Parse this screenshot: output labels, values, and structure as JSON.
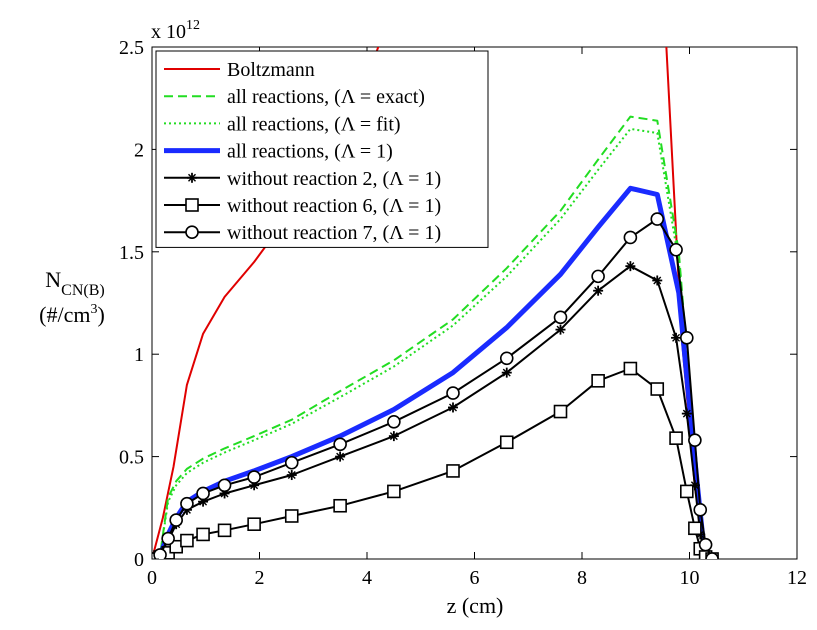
{
  "chart_data": {
    "type": "line",
    "xlabel": "z (cm)",
    "ylabel_main": "N",
    "ylabel_sub": "CN(B)",
    "ylabel_unit_pre": "(#/cm",
    "ylabel_unit_sup": "3",
    "ylabel_unit_post": ")",
    "exponent_prefix": "x 10",
    "exponent_power": "12",
    "xlim": [
      0,
      12
    ],
    "ylim": [
      0,
      2.5
    ],
    "xticks": [
      "0",
      "2",
      "4",
      "6",
      "8",
      "10",
      "12"
    ],
    "yticks": [
      "0",
      "0.5",
      "1",
      "1.5",
      "2",
      "2.5"
    ],
    "grid": false,
    "legend_position": "top-left",
    "series": [
      {
        "name": "Boltzmann",
        "color": "#e00000",
        "style": "solid",
        "marker": "none",
        "x": [
          0.0,
          0.2,
          0.4,
          0.65,
          0.95,
          1.35,
          1.9,
          2.6,
          3.3,
          4.0,
          4.35,
          9.55,
          9.85,
          10.1,
          10.25,
          10.35,
          10.42
        ],
        "y": [
          0.0,
          0.2,
          0.45,
          0.85,
          1.1,
          1.28,
          1.45,
          1.7,
          2.0,
          2.35,
          2.6,
          2.6,
          1.1,
          0.35,
          0.1,
          0.02,
          0.0
        ]
      },
      {
        "name": "all reactions, (Λ = exact)",
        "color": "#22dd22",
        "style": "dashed",
        "marker": "none",
        "x": [
          0.0,
          0.15,
          0.3,
          0.45,
          0.65,
          0.95,
          1.35,
          1.9,
          2.6,
          3.5,
          4.5,
          5.6,
          6.6,
          7.6,
          8.3,
          8.9,
          9.4,
          9.8,
          10.0,
          10.15,
          10.25,
          10.35,
          10.42
        ],
        "y": [
          0.0,
          0.02,
          0.3,
          0.38,
          0.44,
          0.49,
          0.54,
          0.6,
          0.68,
          0.82,
          0.97,
          1.17,
          1.42,
          1.7,
          1.95,
          2.16,
          2.14,
          1.5,
          0.85,
          0.4,
          0.12,
          0.03,
          0.0
        ]
      },
      {
        "name": "all reactions, (Λ = fit)",
        "color": "#22dd22",
        "style": "dotted",
        "marker": "none",
        "x": [
          0.0,
          0.15,
          0.3,
          0.45,
          0.65,
          0.95,
          1.35,
          1.9,
          2.6,
          3.5,
          4.5,
          5.6,
          6.6,
          7.6,
          8.3,
          8.9,
          9.4,
          9.8,
          10.0,
          10.15,
          10.25,
          10.35,
          10.42
        ],
        "y": [
          0.0,
          0.02,
          0.28,
          0.36,
          0.42,
          0.47,
          0.52,
          0.58,
          0.66,
          0.79,
          0.94,
          1.14,
          1.38,
          1.66,
          1.9,
          2.1,
          2.08,
          1.45,
          0.8,
          0.38,
          0.11,
          0.03,
          0.0
        ]
      },
      {
        "name": "all reactions, (Λ = 1)",
        "color": "#1a2bff",
        "style": "thick",
        "marker": "none",
        "x": [
          0.0,
          0.15,
          0.3,
          0.45,
          0.65,
          0.95,
          1.35,
          1.9,
          2.6,
          3.5,
          4.5,
          5.6,
          6.6,
          7.6,
          8.3,
          8.9,
          9.4,
          9.8,
          10.0,
          10.15,
          10.25,
          10.35,
          10.42
        ],
        "y": [
          0.0,
          0.02,
          0.12,
          0.2,
          0.28,
          0.33,
          0.38,
          0.43,
          0.5,
          0.6,
          0.73,
          0.91,
          1.13,
          1.39,
          1.62,
          1.81,
          1.78,
          1.3,
          0.75,
          0.35,
          0.1,
          0.03,
          0.0
        ]
      },
      {
        "name": "without reaction 2, (Λ = 1)",
        "color": "#000000",
        "style": "solid",
        "marker": "star",
        "x": [
          0.0,
          0.15,
          0.3,
          0.45,
          0.65,
          0.95,
          1.35,
          1.9,
          2.6,
          3.5,
          4.5,
          5.6,
          6.6,
          7.6,
          8.3,
          8.9,
          9.4,
          9.75,
          9.95,
          10.1,
          10.2,
          10.3,
          10.42
        ],
        "y": [
          0.0,
          0.02,
          0.09,
          0.17,
          0.24,
          0.28,
          0.32,
          0.36,
          0.41,
          0.5,
          0.6,
          0.74,
          0.91,
          1.12,
          1.31,
          1.43,
          1.36,
          1.08,
          0.71,
          0.36,
          0.12,
          0.03,
          0.0
        ]
      },
      {
        "name": "without reaction 6, (Λ = 1)",
        "color": "#000000",
        "style": "solid",
        "marker": "square",
        "x": [
          0.0,
          0.15,
          0.3,
          0.45,
          0.65,
          0.95,
          1.35,
          1.9,
          2.6,
          3.5,
          4.5,
          5.6,
          6.6,
          7.6,
          8.3,
          8.9,
          9.4,
          9.75,
          9.95,
          10.1,
          10.2,
          10.3,
          10.42
        ],
        "y": [
          0.0,
          0.01,
          0.03,
          0.06,
          0.09,
          0.12,
          0.14,
          0.17,
          0.21,
          0.26,
          0.33,
          0.43,
          0.57,
          0.72,
          0.87,
          0.93,
          0.83,
          0.59,
          0.33,
          0.15,
          0.05,
          0.01,
          0.0
        ]
      },
      {
        "name": "without reaction 7, (Λ = 1)",
        "color": "#000000",
        "style": "solid",
        "marker": "circle",
        "x": [
          0.0,
          0.15,
          0.3,
          0.45,
          0.65,
          0.95,
          1.35,
          1.9,
          2.6,
          3.5,
          4.5,
          5.6,
          6.6,
          7.6,
          8.3,
          8.9,
          9.4,
          9.75,
          9.95,
          10.1,
          10.2,
          10.3,
          10.42
        ],
        "y": [
          0.0,
          0.02,
          0.1,
          0.19,
          0.27,
          0.32,
          0.36,
          0.4,
          0.47,
          0.56,
          0.67,
          0.81,
          0.98,
          1.18,
          1.38,
          1.57,
          1.66,
          1.51,
          1.08,
          0.58,
          0.24,
          0.07,
          0.0
        ]
      }
    ]
  }
}
